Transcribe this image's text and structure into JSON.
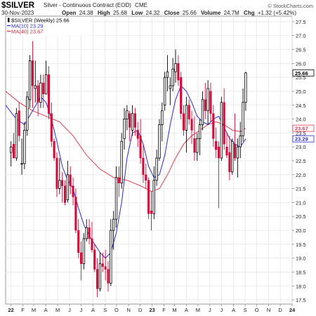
{
  "header": {
    "symbol": "$SILVER",
    "description": "Silver - Continuous Contract (EOD)",
    "exchange": "CME",
    "date": "30-Nov-2023",
    "open_label": "Open",
    "open": "24.38",
    "high_label": "High",
    "high": "25.68",
    "low_label": "Low",
    "low": "24.32",
    "close_label": "Close",
    "close": "25.66",
    "volume_label": "Volume",
    "volume": "24.7M",
    "chg_label": "Chg",
    "chg": "+1.32 (+5.42%)",
    "watermark": "© StockCharts.com"
  },
  "legend": [
    {
      "text": "$SILVER (Weekly) 25.66",
      "color": "#000000",
      "marker": "candle"
    },
    {
      "text": "MA(10) 23.29",
      "color": "#2b2bd6",
      "marker": "line"
    },
    {
      "text": "MA(40) 23.67",
      "color": "#d6283c",
      "marker": "line"
    }
  ],
  "colors": {
    "up": "#000000",
    "down": "#d50a3a",
    "ma10": "#2b2bd6",
    "ma40": "#e8394f",
    "grid": "#e6e6e6",
    "text": "#222222",
    "price_tag_bg": "#ffffff"
  },
  "chart_data": {
    "type": "candlestick",
    "symbol": "$SILVER",
    "period": "Weekly",
    "y_ticks": [
      17.5,
      18.0,
      18.5,
      19.0,
      19.5,
      20.0,
      20.5,
      21.0,
      21.5,
      22.0,
      22.5,
      23.0,
      23.5,
      24.0,
      24.5,
      25.0,
      25.5,
      26.0,
      26.5,
      27.0,
      27.5
    ],
    "ylim": [
      17.35,
      27.7
    ],
    "x_labels": [
      "22",
      "F",
      "M",
      "A",
      "M",
      "J",
      "J",
      "A",
      "S",
      "O",
      "N",
      "D",
      "23",
      "F",
      "M",
      "A",
      "M",
      "J",
      "J",
      "A",
      "S",
      "O",
      "N",
      "D",
      "24"
    ],
    "x_label_weeks": [
      0.0,
      4.4,
      8.4,
      12.9,
      17.3,
      21.7,
      26.0,
      30.4,
      34.9,
      39.1,
      43.6,
      47.9,
      52.3,
      56.7,
      60.6,
      65.0,
      69.3,
      73.7,
      78.0,
      82.5,
      86.8,
      91.1,
      95.5,
      99.8,
      104.2
    ],
    "right_tags": [
      {
        "value": 25.66,
        "label": "25.66",
        "color": "#000000"
      },
      {
        "value": 23.67,
        "label": "23.67",
        "color": "#e8394f"
      },
      {
        "value": 23.29,
        "label": "23.29",
        "color": "#2b2bd6"
      }
    ],
    "x_range_weeks": [
      -2,
      104.2
    ],
    "candles": [
      [
        22.8,
        23.2,
        22.3,
        23.0
      ],
      [
        23.1,
        23.5,
        22.6,
        22.6
      ],
      [
        22.6,
        24.4,
        22.5,
        24.2
      ],
      [
        24.3,
        24.6,
        23.2,
        23.4
      ],
      [
        22.4,
        23.3,
        22.0,
        22.4
      ],
      [
        22.4,
        23.9,
        22.2,
        23.6
      ],
      [
        23.6,
        25.0,
        23.4,
        24.8
      ],
      [
        24.7,
        26.3,
        24.4,
        26.1
      ],
      [
        26.1,
        26.8,
        24.4,
        25.2
      ],
      [
        25.1,
        26.1,
        24.6,
        25.2
      ],
      [
        25.2,
        25.4,
        24.1,
        24.6
      ],
      [
        24.6,
        25.6,
        24.4,
        25.3
      ],
      [
        25.3,
        25.6,
        24.4,
        24.9
      ],
      [
        24.9,
        26.1,
        24.9,
        25.6
      ],
      [
        25.6,
        25.9,
        24.0,
        24.2
      ],
      [
        24.2,
        24.6,
        23.0,
        23.2
      ],
      [
        23.2,
        23.3,
        22.5,
        22.6
      ],
      [
        22.6,
        22.8,
        21.2,
        21.5
      ],
      [
        21.5,
        22.6,
        21.3,
        21.8
      ],
      [
        21.8,
        22.1,
        21.0,
        21.6
      ],
      [
        21.6,
        21.8,
        20.9,
        21.0
      ],
      [
        21.1,
        22.5,
        21.0,
        22.0
      ],
      [
        22.0,
        22.3,
        21.3,
        21.6
      ],
      [
        21.6,
        21.9,
        20.9,
        21.2
      ],
      [
        21.2,
        21.5,
        19.9,
        20.0
      ],
      [
        20.0,
        20.4,
        19.0,
        19.2
      ],
      [
        19.2,
        19.6,
        18.2,
        18.8
      ],
      [
        18.8,
        19.9,
        18.6,
        19.7
      ],
      [
        19.7,
        20.4,
        19.6,
        20.1
      ],
      [
        20.1,
        20.4,
        19.5,
        19.7
      ],
      [
        19.7,
        20.3,
        19.2,
        19.3
      ],
      [
        19.3,
        19.5,
        18.5,
        18.6
      ],
      [
        18.6,
        19.0,
        17.6,
        17.9
      ],
      [
        17.9,
        19.2,
        17.8,
        18.8
      ],
      [
        18.8,
        19.2,
        18.5,
        18.7
      ],
      [
        18.7,
        19.3,
        18.2,
        18.6
      ],
      [
        18.6,
        18.9,
        17.8,
        18.1
      ],
      [
        18.1,
        20.4,
        18.0,
        20.0
      ],
      [
        20.0,
        20.7,
        19.3,
        20.4
      ],
      [
        20.4,
        22.3,
        20.1,
        21.9
      ],
      [
        21.9,
        22.3,
        21.2,
        21.7
      ],
      [
        21.7,
        23.5,
        21.5,
        23.2
      ],
      [
        23.3,
        24.4,
        22.9,
        24.0
      ],
      [
        24.0,
        24.5,
        23.6,
        24.3
      ],
      [
        24.2,
        24.3,
        23.2,
        23.7
      ],
      [
        23.6,
        24.5,
        23.4,
        24.2
      ],
      [
        24.2,
        24.4,
        23.4,
        23.7
      ],
      [
        23.6,
        23.9,
        23.0,
        23.3
      ],
      [
        23.4,
        24.0,
        22.4,
        22.6
      ],
      [
        22.6,
        23.1,
        21.7,
        22.0
      ],
      [
        22.0,
        22.4,
        21.5,
        21.8
      ],
      [
        21.8,
        21.9,
        20.4,
        20.6
      ],
      [
        20.7,
        21.4,
        20.0,
        20.6
      ],
      [
        20.6,
        22.3,
        20.4,
        21.8
      ],
      [
        21.8,
        22.9,
        21.6,
        22.6
      ],
      [
        22.6,
        24.0,
        22.5,
        23.8
      ],
      [
        23.8,
        24.6,
        23.2,
        24.3
      ],
      [
        24.5,
        25.7,
        24.3,
        25.5
      ],
      [
        25.5,
        26.3,
        25.0,
        25.7
      ],
      [
        25.1,
        25.5,
        24.5,
        25.2
      ],
      [
        25.2,
        26.2,
        25.0,
        25.8
      ],
      [
        25.7,
        26.5,
        25.3,
        26.0
      ],
      [
        26.0,
        26.3,
        25.2,
        25.4
      ],
      [
        25.5,
        25.7,
        24.0,
        24.2
      ],
      [
        24.2,
        24.5,
        23.4,
        23.6
      ],
      [
        23.6,
        24.8,
        22.8,
        24.5
      ],
      [
        24.5,
        24.7,
        23.8,
        24.0
      ],
      [
        24.0,
        24.3,
        23.1,
        23.6
      ],
      [
        23.3,
        24.1,
        22.5,
        22.8
      ],
      [
        22.8,
        23.5,
        22.5,
        23.3
      ],
      [
        23.3,
        24.0,
        22.7,
        23.8
      ],
      [
        23.8,
        25.0,
        23.6,
        24.7
      ],
      [
        24.7,
        25.3,
        24.0,
        24.3
      ],
      [
        24.3,
        25.4,
        23.8,
        25.1
      ],
      [
        25.0,
        25.3,
        23.9,
        24.2
      ],
      [
        24.2,
        24.5,
        23.0,
        23.3
      ],
      [
        23.2,
        23.7,
        22.6,
        22.9
      ],
      [
        23.0,
        23.2,
        20.8,
        22.6
      ],
      [
        22.6,
        24.8,
        22.5,
        24.6
      ],
      [
        24.6,
        25.1,
        22.9,
        23.1
      ],
      [
        23.0,
        23.5,
        22.6,
        22.7
      ],
      [
        22.8,
        23.4,
        21.8,
        22.1
      ],
      [
        22.1,
        23.3,
        22.0,
        23.2
      ],
      [
        23.1,
        24.2,
        22.5,
        22.6
      ],
      [
        22.6,
        23.3,
        21.9,
        23.0
      ],
      [
        23.0,
        23.9,
        22.6,
        23.4
      ],
      [
        23.4,
        25.1,
        23.2,
        24.6
      ],
      [
        24.6,
        25.7,
        24.3,
        25.66
      ]
    ],
    "ma10": {
      "label": "MA(10)",
      "last": 23.29,
      "points": [
        [
          -2,
          24.5
        ],
        [
          2,
          24.0
        ],
        [
          5,
          23.8
        ],
        [
          8,
          24.3
        ],
        [
          11,
          24.8
        ],
        [
          13,
          24.6
        ],
        [
          15,
          24.0
        ],
        [
          17,
          23.2
        ],
        [
          19,
          22.3
        ],
        [
          21,
          21.8
        ],
        [
          23,
          21.5
        ],
        [
          25,
          20.8
        ],
        [
          27,
          20.2
        ],
        [
          29,
          19.8
        ],
        [
          31,
          19.5
        ],
        [
          33,
          19.2
        ],
        [
          35,
          19.0
        ],
        [
          37,
          19.2
        ],
        [
          39,
          19.9
        ],
        [
          41,
          21.0
        ],
        [
          43,
          22.6
        ],
        [
          45,
          23.5
        ],
        [
          47,
          23.6
        ],
        [
          49,
          23.1
        ],
        [
          51,
          22.3
        ],
        [
          53,
          21.9
        ],
        [
          55,
          22.0
        ],
        [
          57,
          22.7
        ],
        [
          59,
          23.8
        ],
        [
          61,
          24.7
        ],
        [
          63,
          25.2
        ],
        [
          65,
          25.0
        ],
        [
          67,
          24.6
        ],
        [
          69,
          24.1
        ],
        [
          71,
          23.9
        ],
        [
          73,
          23.8
        ],
        [
          75,
          24.0
        ],
        [
          77,
          24.1
        ],
        [
          79,
          23.7
        ],
        [
          81,
          23.3
        ],
        [
          83,
          23.1
        ],
        [
          85,
          23.0
        ],
        [
          87,
          23.29
        ]
      ]
    },
    "ma40": {
      "label": "MA(40)",
      "last": 23.67,
      "points": [
        [
          -2,
          25.0
        ],
        [
          3,
          24.6
        ],
        [
          8,
          24.3
        ],
        [
          13,
          24.1
        ],
        [
          18,
          23.9
        ],
        [
          23,
          23.4
        ],
        [
          28,
          22.7
        ],
        [
          33,
          22.2
        ],
        [
          38,
          21.9
        ],
        [
          43,
          21.8
        ],
        [
          48,
          21.6
        ],
        [
          52,
          21.4
        ],
        [
          55,
          21.5
        ],
        [
          58,
          22.0
        ],
        [
          61,
          22.6
        ],
        [
          64,
          23.1
        ],
        [
          67,
          23.4
        ],
        [
          70,
          23.6
        ],
        [
          73,
          23.8
        ],
        [
          76,
          23.9
        ],
        [
          79,
          23.8
        ],
        [
          82,
          23.6
        ],
        [
          85,
          23.55
        ],
        [
          87,
          23.67
        ]
      ]
    }
  }
}
